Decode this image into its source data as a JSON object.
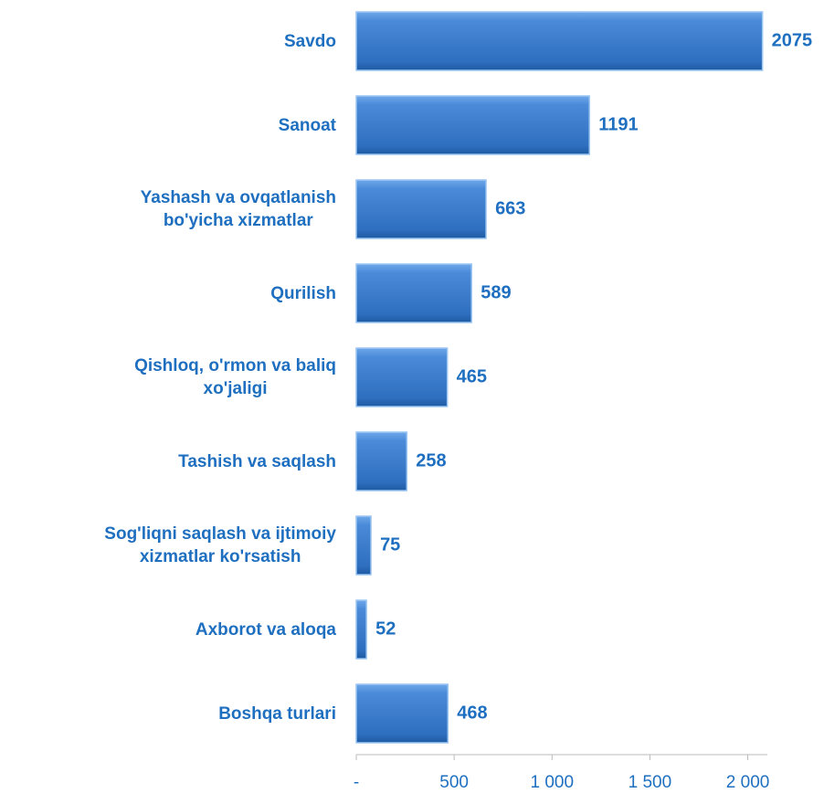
{
  "chart_data": {
    "type": "hbar",
    "categories": [
      "Savdo",
      "Sanoat",
      "Yashash va ovqatlanish\nbo'yicha xizmatlar",
      "Qurilish",
      "Qishloq, o'rmon va baliq\nxo'jaligi",
      "Tashish va saqlash",
      "Sog'liqni saqlash va ijtimoiy\nxizmatlar ko'rsatish",
      "Axborot va aloqa",
      "Boshqa turlari"
    ],
    "values": [
      2075,
      1191,
      663,
      589,
      465,
      258,
      75,
      52,
      468
    ],
    "color": "#3c7fcf",
    "xlim": [
      0,
      2100
    ],
    "xticks": [
      {
        "value": 0,
        "label": "-"
      },
      500,
      {
        "value": 1000,
        "label": "1 000"
      },
      {
        "value": 1500,
        "label": "1 500"
      },
      {
        "value": 2000,
        "label": "2 000"
      }
    ]
  }
}
